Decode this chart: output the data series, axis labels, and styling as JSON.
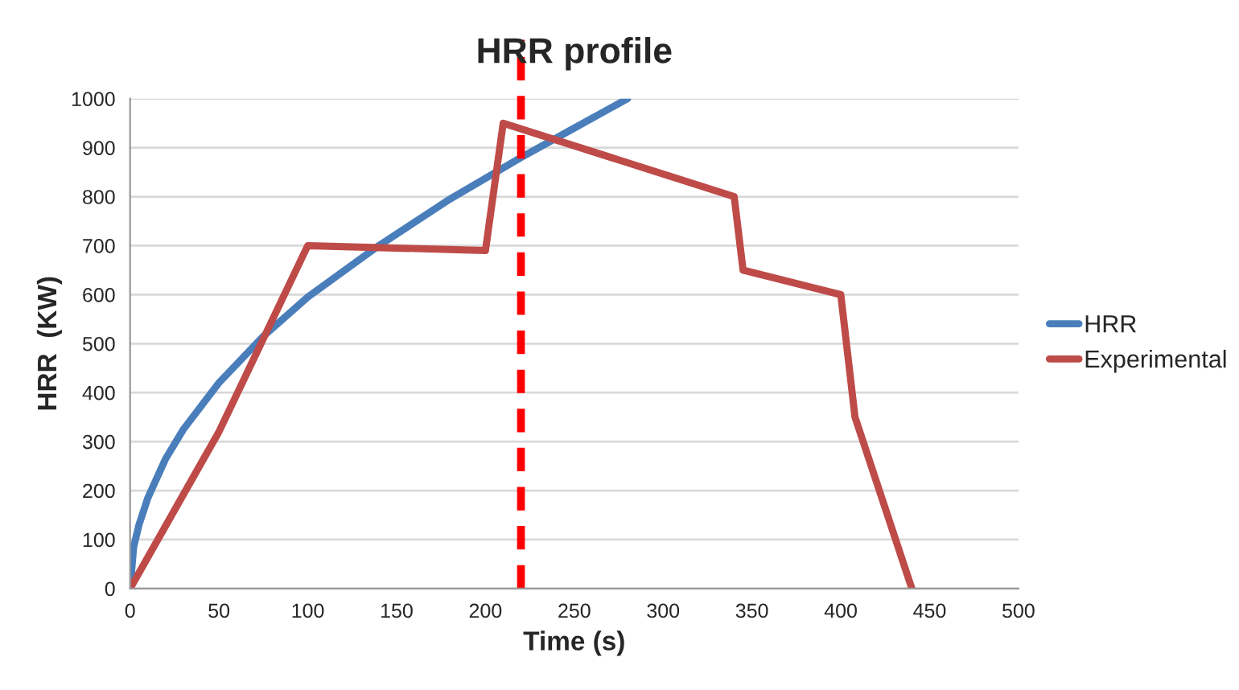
{
  "chart_data": {
    "type": "line",
    "title": "HRR profile",
    "xlabel": "Time (s)",
    "ylabel": "HRR  (KW)",
    "series": [
      {
        "name": "HRR",
        "color": "#4a7ebb",
        "x": [
          0,
          2,
          5,
          10,
          20,
          30,
          50,
          75,
          100,
          140,
          180,
          220,
          250,
          280
        ],
        "values": [
          0,
          85,
          130,
          185,
          265,
          325,
          420,
          515,
          595,
          700,
          795,
          880,
          940,
          1000
        ]
      },
      {
        "name": "Experimental",
        "color": "#be4b48",
        "x": [
          0,
          50,
          100,
          200,
          210,
          340,
          345,
          400,
          408,
          440
        ],
        "values": [
          0,
          320,
          700,
          690,
          950,
          800,
          650,
          600,
          350,
          0
        ]
      }
    ],
    "xlim": [
      0,
      500
    ],
    "xticks": [
      0,
      50,
      100,
      150,
      200,
      250,
      300,
      350,
      400,
      450,
      500
    ],
    "ylim": [
      0,
      1000
    ],
    "yticks": [
      0,
      100,
      200,
      300,
      400,
      500,
      600,
      700,
      800,
      900,
      1000
    ],
    "grid": "y",
    "legend": "right",
    "marker": "none",
    "line_style": "solid",
    "ref_lines": [
      {
        "axis": "x",
        "value": 220,
        "color": "#ff0000",
        "line_style": "dashed"
      }
    ]
  }
}
